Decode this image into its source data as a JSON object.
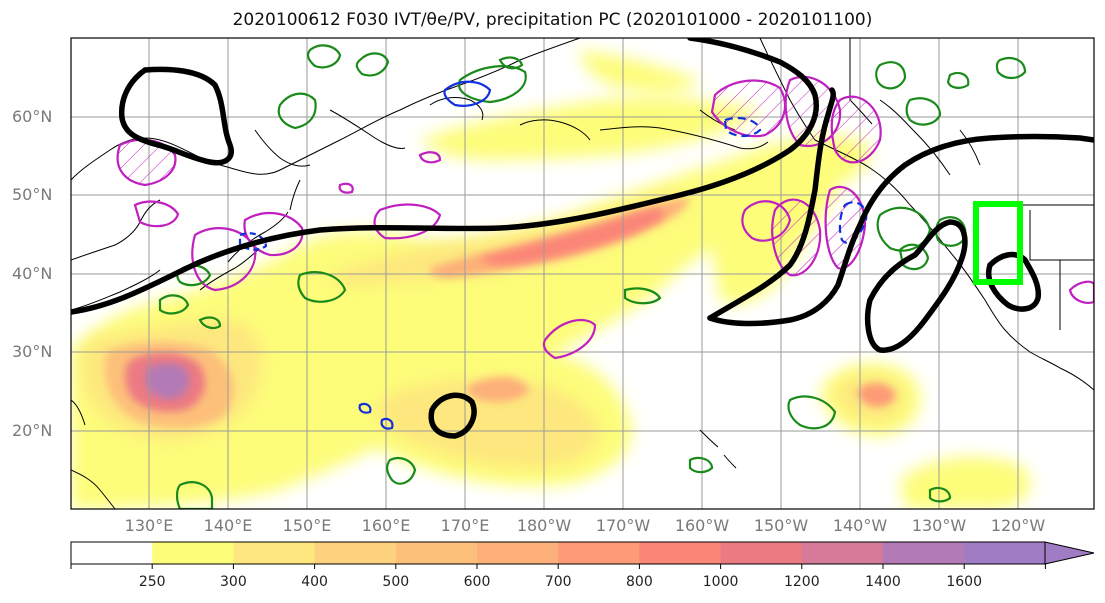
{
  "title": "2020100612 F030 IVT/θe/PV, precipitation PC (2020101000 - 2020101100)",
  "lat_labels": [
    "60°N",
    "50°N",
    "40°N",
    "30°N",
    "20°N"
  ],
  "lon_labels": [
    "130°E",
    "140°E",
    "150°E",
    "160°E",
    "170°E",
    "180°W",
    "170°W",
    "160°W",
    "150°W",
    "140°W",
    "130°W",
    "120°W"
  ],
  "colorbar": {
    "ticks": [
      "250",
      "300",
      "400",
      "500",
      "600",
      "700",
      "800",
      "1000",
      "1200",
      "1400",
      "1600"
    ],
    "colors": [
      "#ffffff",
      "#fdfd7a",
      "#fde77e",
      "#fdd27e",
      "#fdc07a",
      "#fdb079",
      "#fd9b76",
      "#fb8577",
      "#ec7a82",
      "#d57a98",
      "#b27ab6",
      "#a07cc4"
    ],
    "extend": "max"
  },
  "map": {
    "lat_range": [
      "10°N",
      "70°N"
    ],
    "lon_range": [
      "120°E",
      "110°W"
    ],
    "fields": [
      "IVT (shaded)",
      "θe (black contour)",
      "PV (magenta, hatched)",
      "precipitation PC (green / blue contours)"
    ],
    "highlight_box_color": "#00ff00",
    "coast_color": "#000000"
  }
}
